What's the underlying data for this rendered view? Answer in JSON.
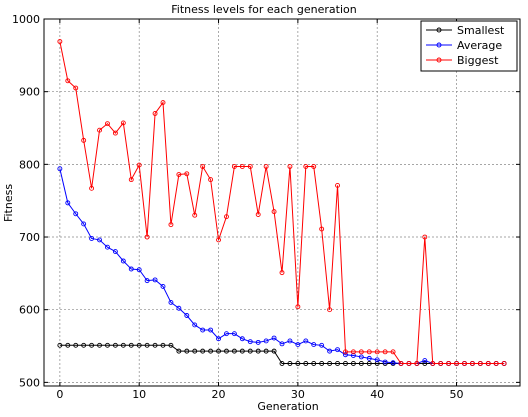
{
  "chart_data": {
    "type": "line",
    "title": "Fitness levels for each generation",
    "xlabel": "Generation",
    "ylabel": "Fitness",
    "xlim": [
      -2,
      58
    ],
    "ylim": [
      495,
      1000
    ],
    "xticks": [
      0,
      10,
      20,
      30,
      40,
      50
    ],
    "yticks": [
      500,
      600,
      700,
      800,
      900,
      1000
    ],
    "grid": true,
    "legend_position": "top-right",
    "x": [
      0,
      1,
      2,
      3,
      4,
      5,
      6,
      7,
      8,
      9,
      10,
      11,
      12,
      13,
      14,
      15,
      16,
      17,
      18,
      19,
      20,
      21,
      22,
      23,
      24,
      25,
      26,
      27,
      28,
      29,
      30,
      31,
      32,
      33,
      34,
      35,
      36,
      37,
      38,
      39,
      40,
      41,
      42,
      43,
      44,
      45,
      46,
      47,
      48,
      49,
      50,
      51,
      52,
      53,
      54,
      55,
      56
    ],
    "series": [
      {
        "name": "Smallest",
        "color": "#000000",
        "values": [
          551,
          551,
          551,
          551,
          551,
          551,
          551,
          551,
          551,
          551,
          551,
          551,
          551,
          551,
          551,
          543,
          543,
          543,
          543,
          543,
          543,
          543,
          543,
          543,
          543,
          543,
          543,
          543,
          526,
          526,
          526,
          526,
          526,
          526,
          526,
          526,
          526,
          526,
          526,
          526,
          526,
          526,
          526,
          526,
          526,
          526,
          526,
          526,
          526,
          526,
          526,
          526,
          526,
          526,
          526,
          526,
          526
        ]
      },
      {
        "name": "Average",
        "color": "#0000ff",
        "values": [
          794,
          747,
          732,
          718,
          698,
          696,
          686,
          680,
          667,
          656,
          655,
          640,
          641,
          632,
          610,
          602,
          592,
          579,
          572,
          572,
          560,
          567,
          567,
          560,
          556,
          555,
          557,
          561,
          553,
          557,
          552,
          557,
          552,
          551,
          543,
          545,
          538,
          537,
          535,
          533,
          531,
          528,
          527,
          526,
          526,
          526,
          530,
          526,
          526,
          526,
          526,
          526,
          526,
          526,
          526,
          526,
          526
        ]
      },
      {
        "name": "Biggest",
        "color": "#ff0000",
        "values": [
          969,
          915,
          905,
          833,
          767,
          847,
          856,
          843,
          857,
          779,
          799,
          700,
          870,
          885,
          717,
          786,
          787,
          730,
          797,
          779,
          696,
          728,
          797,
          797,
          797,
          731,
          797,
          735,
          651,
          797,
          604,
          797,
          797,
          711,
          600,
          771,
          542,
          542,
          542,
          542,
          542,
          542,
          542,
          526,
          526,
          526,
          700,
          526,
          526,
          526,
          526,
          526,
          526,
          526,
          526,
          526,
          526
        ]
      }
    ]
  }
}
